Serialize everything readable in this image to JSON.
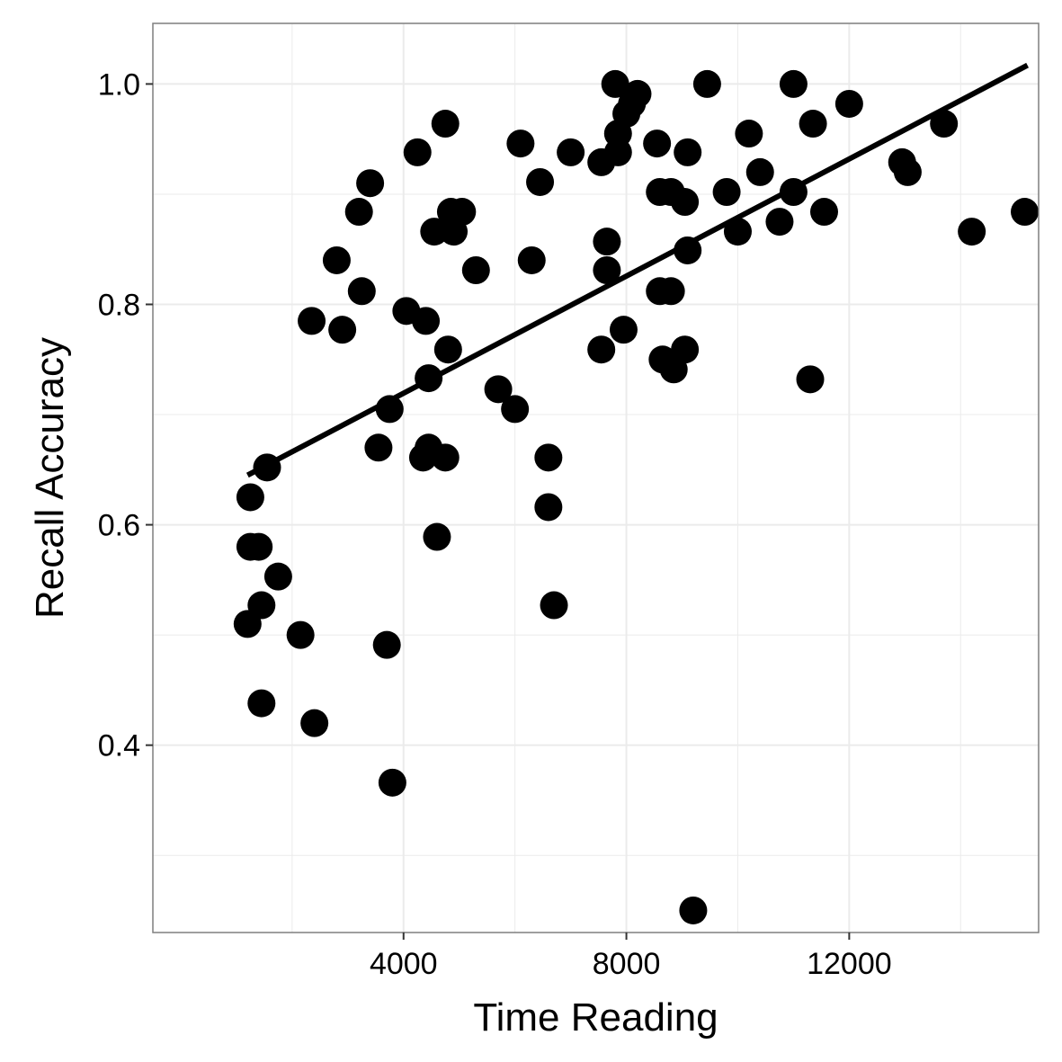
{
  "chart_data": {
    "type": "scatter",
    "title": "",
    "xlabel": "Time Reading",
    "ylabel": "Recall Accuracy",
    "xlim": [
      -500,
      15400
    ],
    "ylim": [
      0.23,
      1.055
    ],
    "x_ticks": [
      4000,
      8000,
      12000
    ],
    "x_tick_labels": [
      "4000",
      "8000",
      "12000"
    ],
    "x_minor_ticks": [
      2000,
      6000,
      10000,
      14000
    ],
    "y_ticks": [
      0.4,
      0.6,
      0.8,
      1.0
    ],
    "y_tick_labels": [
      "0.4",
      "0.6",
      "0.8",
      "1.0"
    ],
    "y_minor_ticks": [
      0.3,
      0.5,
      0.7,
      0.9
    ],
    "grid": true,
    "colors": {
      "points": "#000000",
      "fit_line": "#000000",
      "grid": "#ebebeb",
      "panel_border": "#7f7f7f"
    },
    "fit_line": {
      "x": [
        1200,
        15200
      ],
      "y": [
        0.645,
        1.017
      ]
    },
    "points": [
      {
        "x": 1250,
        "y": 0.625
      },
      {
        "x": 1250,
        "y": 0.58
      },
      {
        "x": 1400,
        "y": 0.58
      },
      {
        "x": 1200,
        "y": 0.51
      },
      {
        "x": 1450,
        "y": 0.527
      },
      {
        "x": 1450,
        "y": 0.438
      },
      {
        "x": 1550,
        "y": 0.652
      },
      {
        "x": 1750,
        "y": 0.553
      },
      {
        "x": 2150,
        "y": 0.5
      },
      {
        "x": 2350,
        "y": 0.785
      },
      {
        "x": 2400,
        "y": 0.42
      },
      {
        "x": 2800,
        "y": 0.84
      },
      {
        "x": 2900,
        "y": 0.777
      },
      {
        "x": 3200,
        "y": 0.884
      },
      {
        "x": 3250,
        "y": 0.812
      },
      {
        "x": 3400,
        "y": 0.91
      },
      {
        "x": 3550,
        "y": 0.67
      },
      {
        "x": 3700,
        "y": 0.491
      },
      {
        "x": 3750,
        "y": 0.705
      },
      {
        "x": 3800,
        "y": 0.366
      },
      {
        "x": 4050,
        "y": 0.794
      },
      {
        "x": 4250,
        "y": 0.938
      },
      {
        "x": 4350,
        "y": 0.661
      },
      {
        "x": 4400,
        "y": 0.785
      },
      {
        "x": 4450,
        "y": 0.67
      },
      {
        "x": 4450,
        "y": 0.733
      },
      {
        "x": 4550,
        "y": 0.866
      },
      {
        "x": 4600,
        "y": 0.589
      },
      {
        "x": 4750,
        "y": 0.964
      },
      {
        "x": 4750,
        "y": 0.661
      },
      {
        "x": 4800,
        "y": 0.759
      },
      {
        "x": 4850,
        "y": 0.884
      },
      {
        "x": 4900,
        "y": 0.866
      },
      {
        "x": 5050,
        "y": 0.884
      },
      {
        "x": 5300,
        "y": 0.831
      },
      {
        "x": 5700,
        "y": 0.723
      },
      {
        "x": 6000,
        "y": 0.705
      },
      {
        "x": 6100,
        "y": 0.946
      },
      {
        "x": 6300,
        "y": 0.84
      },
      {
        "x": 6450,
        "y": 0.911
      },
      {
        "x": 6600,
        "y": 0.661
      },
      {
        "x": 6600,
        "y": 0.616
      },
      {
        "x": 6700,
        "y": 0.527
      },
      {
        "x": 7000,
        "y": 0.938
      },
      {
        "x": 7550,
        "y": 0.929
      },
      {
        "x": 7550,
        "y": 0.759
      },
      {
        "x": 7650,
        "y": 0.857
      },
      {
        "x": 7650,
        "y": 0.831
      },
      {
        "x": 7800,
        "y": 1.0
      },
      {
        "x": 7850,
        "y": 0.955
      },
      {
        "x": 7850,
        "y": 0.938
      },
      {
        "x": 7950,
        "y": 0.777
      },
      {
        "x": 8000,
        "y": 0.973
      },
      {
        "x": 8100,
        "y": 0.982
      },
      {
        "x": 8200,
        "y": 0.991
      },
      {
        "x": 8550,
        "y": 0.946
      },
      {
        "x": 8600,
        "y": 0.902
      },
      {
        "x": 8600,
        "y": 0.812
      },
      {
        "x": 8650,
        "y": 0.75
      },
      {
        "x": 8800,
        "y": 0.902
      },
      {
        "x": 8800,
        "y": 0.812
      },
      {
        "x": 8850,
        "y": 0.741
      },
      {
        "x": 9050,
        "y": 0.893
      },
      {
        "x": 9050,
        "y": 0.759
      },
      {
        "x": 9100,
        "y": 0.938
      },
      {
        "x": 9100,
        "y": 0.849
      },
      {
        "x": 9200,
        "y": 0.25
      },
      {
        "x": 9450,
        "y": 1.0
      },
      {
        "x": 9800,
        "y": 0.902
      },
      {
        "x": 10000,
        "y": 0.866
      },
      {
        "x": 10200,
        "y": 0.955
      },
      {
        "x": 10400,
        "y": 0.92
      },
      {
        "x": 10750,
        "y": 0.875
      },
      {
        "x": 11000,
        "y": 1.0
      },
      {
        "x": 11000,
        "y": 0.902
      },
      {
        "x": 11300,
        "y": 0.732
      },
      {
        "x": 11350,
        "y": 0.964
      },
      {
        "x": 11550,
        "y": 0.884
      },
      {
        "x": 12000,
        "y": 0.982
      },
      {
        "x": 12950,
        "y": 0.929
      },
      {
        "x": 13050,
        "y": 0.92
      },
      {
        "x": 13700,
        "y": 0.964
      },
      {
        "x": 14200,
        "y": 0.866
      },
      {
        "x": 15150,
        "y": 0.884
      }
    ]
  }
}
